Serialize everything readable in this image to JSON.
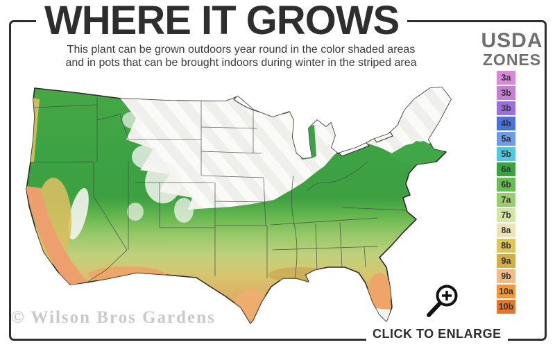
{
  "title": "WHERE IT GROWS",
  "subtitle": {
    "line1": "This plant can be grown outdoors year round in the color shaded areas",
    "line2": "and in pots that can be brought indoors during winter in the striped area"
  },
  "legend": {
    "heading_line1": "USDA",
    "heading_line2": "ZONES",
    "zones": [
      {
        "label": "3a",
        "color": "#d78ad9"
      },
      {
        "label": "3b",
        "color": "#c77fd4"
      },
      {
        "label": "3b",
        "color": "#9a6fe0"
      },
      {
        "label": "4b",
        "color": "#4a72d8"
      },
      {
        "label": "5a",
        "color": "#6f9ae8"
      },
      {
        "label": "5b",
        "color": "#55c8e0"
      },
      {
        "label": "6a",
        "color": "#3ba244"
      },
      {
        "label": "6b",
        "color": "#6cba57"
      },
      {
        "label": "7a",
        "color": "#9ccc70"
      },
      {
        "label": "7b",
        "color": "#d4e6a6"
      },
      {
        "label": "8a",
        "color": "#ece4b8"
      },
      {
        "label": "8b",
        "color": "#dec45e"
      },
      {
        "label": "9a",
        "color": "#d0ae48"
      },
      {
        "label": "9b",
        "color": "#f2bc8a"
      },
      {
        "label": "10a",
        "color": "#f0983a"
      },
      {
        "label": "10b",
        "color": "#e5762e"
      }
    ]
  },
  "map": {
    "description": "Continental US hardiness shading",
    "unshaded_color": "#eff0ec",
    "stripe_color": "#fafbf8",
    "band_colors": [
      "#46a845",
      "#3da041",
      "#62b54d",
      "#95c868",
      "#c0d17c",
      "#d6c670",
      "#ddb264",
      "#eba262"
    ]
  },
  "watermark": "© Wilson Bros Gardens",
  "enlarge": {
    "label": "CLICK TO ENLARGE",
    "icon": "magnifier-plus"
  },
  "colors": {
    "frame": "#2e2e2e",
    "title": "#2e2e2e",
    "legend_heading": "#6f6f6f",
    "watermark": "#c9c9c9"
  }
}
